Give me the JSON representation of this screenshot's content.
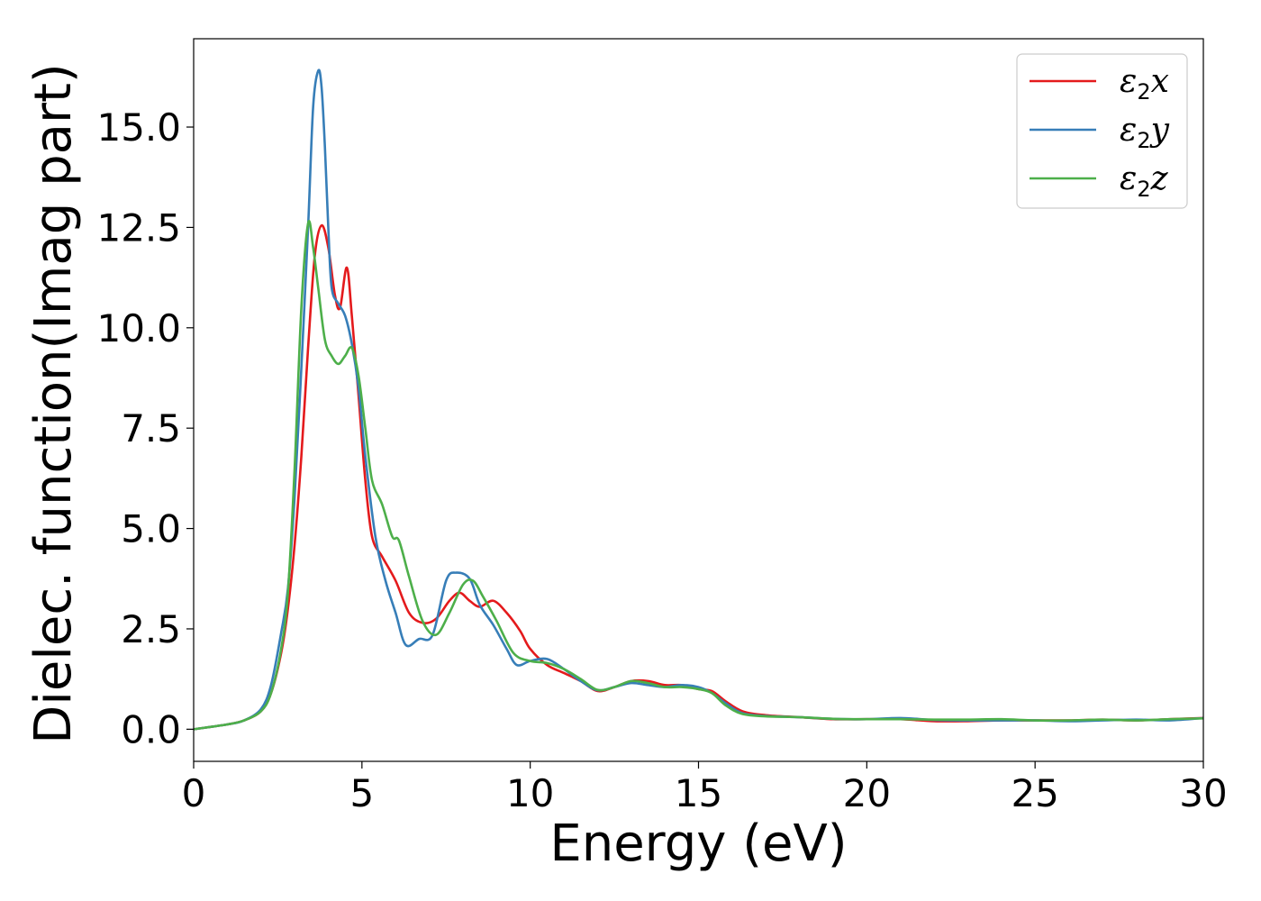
{
  "chart_data": {
    "type": "line",
    "xlabel": "Energy (eV)",
    "ylabel": "Dielec. function(Imag part)",
    "xlim": [
      0,
      30
    ],
    "ylim": [
      -0.8,
      17.2
    ],
    "xticks": [
      0,
      5,
      10,
      15,
      20,
      25,
      30
    ],
    "xtick_labels": [
      "0",
      "5",
      "10",
      "15",
      "20",
      "25",
      "30"
    ],
    "yticks": [
      0.0,
      2.5,
      5.0,
      7.5,
      10.0,
      12.5,
      15.0
    ],
    "ytick_labels": [
      "0.0",
      "2.5",
      "5.0",
      "7.5",
      "10.0",
      "12.5",
      "15.0"
    ],
    "grid": false,
    "legend_position": "top-right",
    "series": [
      {
        "name": "ε2x",
        "legend_base": "ε",
        "legend_sub": "2",
        "legend_tail": "x",
        "color": "#e41a1c",
        "x": [
          0,
          1,
          1.5,
          2,
          2.3,
          2.6,
          2.8,
          3.0,
          3.2,
          3.4,
          3.6,
          3.8,
          4.0,
          4.2,
          4.35,
          4.55,
          4.7,
          4.9,
          5.1,
          5.3,
          5.6,
          6.0,
          6.4,
          6.8,
          7.2,
          7.6,
          7.9,
          8.2,
          8.5,
          8.9,
          9.3,
          9.7,
          10.0,
          10.5,
          11.0,
          11.5,
          12.0,
          12.5,
          13.0,
          13.5,
          14.0,
          14.5,
          15.0,
          15.4,
          15.8,
          16.3,
          17.0,
          18.0,
          19.0,
          20.0,
          21.0,
          22.0,
          23.0,
          24.0,
          25.0,
          26.0,
          27.0,
          28.0,
          29.0,
          30.0
        ],
        "y": [
          0.0,
          0.12,
          0.22,
          0.45,
          0.9,
          1.9,
          3.0,
          4.6,
          6.8,
          9.5,
          11.8,
          12.55,
          12.0,
          10.8,
          10.5,
          11.5,
          10.3,
          8.3,
          6.2,
          4.8,
          4.3,
          3.7,
          2.9,
          2.65,
          2.75,
          3.2,
          3.4,
          3.2,
          3.05,
          3.2,
          2.9,
          2.45,
          2.0,
          1.6,
          1.4,
          1.2,
          0.95,
          1.05,
          1.2,
          1.2,
          1.1,
          1.1,
          1.0,
          0.95,
          0.7,
          0.45,
          0.35,
          0.3,
          0.25,
          0.25,
          0.25,
          0.2,
          0.2,
          0.22,
          0.22,
          0.22,
          0.24,
          0.22,
          0.25,
          0.28
        ]
      },
      {
        "name": "ε2y",
        "legend_base": "ε",
        "legend_sub": "2",
        "legend_tail": "y",
        "color": "#377eb8",
        "x": [
          0,
          1,
          1.5,
          2,
          2.3,
          2.6,
          2.8,
          3.0,
          3.2,
          3.4,
          3.55,
          3.7,
          3.8,
          3.9,
          4.0,
          4.1,
          4.3,
          4.5,
          4.7,
          4.9,
          5.1,
          5.4,
          5.7,
          6.0,
          6.3,
          6.7,
          7.1,
          7.5,
          7.8,
          8.2,
          8.5,
          8.9,
          9.3,
          9.6,
          10.0,
          10.5,
          11.0,
          11.5,
          12.0,
          12.5,
          13.0,
          13.5,
          14.0,
          14.5,
          15.0,
          15.4,
          15.8,
          16.3,
          17.0,
          18.0,
          19.0,
          20.0,
          21.0,
          22.0,
          23.0,
          24.0,
          25.0,
          26.0,
          27.0,
          28.0,
          29.0,
          30.0
        ],
        "y": [
          0.0,
          0.12,
          0.22,
          0.5,
          1.1,
          2.4,
          3.5,
          5.8,
          9.0,
          12.5,
          15.5,
          16.4,
          16.0,
          14.5,
          12.5,
          11.0,
          10.6,
          10.3,
          9.6,
          8.5,
          6.8,
          4.8,
          3.7,
          2.9,
          2.1,
          2.25,
          2.35,
          3.7,
          3.9,
          3.75,
          3.1,
          2.6,
          2.0,
          1.6,
          1.7,
          1.75,
          1.5,
          1.2,
          0.97,
          1.05,
          1.15,
          1.1,
          1.05,
          1.1,
          1.05,
          0.9,
          0.65,
          0.4,
          0.33,
          0.3,
          0.26,
          0.25,
          0.28,
          0.23,
          0.22,
          0.22,
          0.22,
          0.2,
          0.22,
          0.24,
          0.22,
          0.28
        ]
      },
      {
        "name": "ε2z",
        "legend_base": "ε",
        "legend_sub": "2",
        "legend_tail": "z",
        "color": "#4daf4a",
        "x": [
          0,
          1,
          1.5,
          2,
          2.3,
          2.6,
          2.8,
          3.0,
          3.2,
          3.4,
          3.55,
          3.7,
          3.9,
          4.1,
          4.3,
          4.5,
          4.7,
          4.9,
          5.1,
          5.3,
          5.6,
          5.9,
          6.1,
          6.4,
          6.8,
          7.2,
          7.6,
          8.0,
          8.3,
          8.6,
          9.0,
          9.5,
          10.0,
          10.5,
          11.0,
          11.5,
          12.0,
          12.5,
          13.0,
          13.5,
          14.0,
          14.5,
          15.0,
          15.4,
          15.8,
          16.3,
          17.0,
          18.0,
          19.0,
          20.0,
          21.0,
          22.0,
          23.0,
          24.0,
          25.0,
          26.0,
          27.0,
          28.0,
          29.0,
          30.0
        ],
        "y": [
          0.0,
          0.12,
          0.22,
          0.45,
          0.9,
          2.0,
          3.4,
          6.5,
          10.5,
          12.6,
          12.0,
          11.0,
          9.7,
          9.3,
          9.1,
          9.3,
          9.5,
          8.8,
          7.5,
          6.2,
          5.6,
          4.8,
          4.7,
          3.8,
          2.7,
          2.35,
          2.9,
          3.6,
          3.7,
          3.3,
          2.7,
          1.9,
          1.7,
          1.65,
          1.5,
          1.25,
          0.98,
          1.05,
          1.2,
          1.15,
          1.05,
          1.05,
          1.0,
          0.9,
          0.6,
          0.38,
          0.32,
          0.3,
          0.26,
          0.25,
          0.25,
          0.24,
          0.24,
          0.25,
          0.22,
          0.22,
          0.24,
          0.22,
          0.25,
          0.27
        ]
      }
    ]
  }
}
